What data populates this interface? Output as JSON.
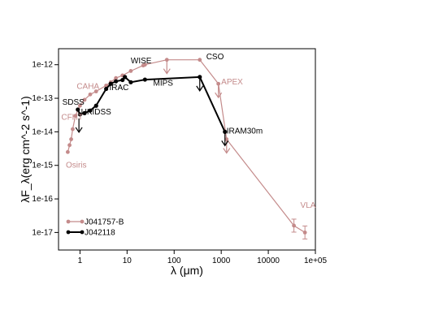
{
  "chart_data": {
    "type": "line",
    "xlabel": "λ (μm)",
    "ylabel": "λF_λ(erg cm^-2 s^-1)",
    "x_scale": "log",
    "y_scale": "log",
    "xlim": [
      0.35,
      100000
    ],
    "ylim": [
      3e-18,
      3e-12
    ],
    "x_ticks": [
      1,
      10,
      100,
      1000,
      10000,
      100000
    ],
    "x_tick_labels": [
      "1",
      "10",
      "100",
      "1000",
      "10000",
      "1e+05"
    ],
    "y_ticks": [
      1e-17,
      1e-16,
      1e-15,
      1e-14,
      1e-13,
      1e-12
    ],
    "y_tick_labels": [
      "1e-17",
      "1e-16",
      "1e-15",
      "1e-14",
      "1e-13",
      "1e-12"
    ],
    "legend_position": "bottom-left",
    "colors": {
      "J041757-B": "#c48b8b",
      "J042118": "#000000"
    },
    "series": [
      {
        "name": "J041757-B",
        "color": "#c48b8b",
        "points": [
          {
            "x": 0.55,
            "y": 2.5e-15
          },
          {
            "x": 0.6,
            "y": 4e-15
          },
          {
            "x": 0.65,
            "y": 6e-15
          },
          {
            "x": 0.7,
            "y": 1.2e-14
          },
          {
            "x": 0.8,
            "y": 3e-14
          },
          {
            "x": 1.0,
            "y": 6e-14
          },
          {
            "x": 1.25,
            "y": 9e-14
          },
          {
            "x": 1.65,
            "y": 1.3e-13
          },
          {
            "x": 2.2,
            "y": 1.6e-13
          },
          {
            "x": 3.6,
            "y": 2.4e-13
          },
          {
            "x": 4.5,
            "y": 3e-13
          },
          {
            "x": 5.8,
            "y": 4e-13
          },
          {
            "x": 8.0,
            "y": 4.8e-13
          },
          {
            "x": 12,
            "y": 6.5e-13
          },
          {
            "x": 22,
            "y": 9.5e-13
          },
          {
            "x": 24,
            "y": 1e-12
          },
          {
            "x": 70,
            "y": 1.4e-12
          },
          {
            "x": 350,
            "y": 1.4e-12
          },
          {
            "x": 870,
            "y": 2.7e-13
          },
          {
            "x": 1300,
            "y": 6e-15
          },
          {
            "x": 35000,
            "y": 1.6e-17
          },
          {
            "x": 60000,
            "y": 1e-17
          }
        ],
        "upper_limits": [
          {
            "x": 70,
            "y": 1.4e-12
          },
          {
            "x": 870,
            "y": 2.7e-13
          },
          {
            "x": 1300,
            "y": 6e-15
          }
        ]
      },
      {
        "name": "J042118",
        "color": "#000000",
        "points": [
          {
            "x": 0.9,
            "y": 4.6e-14
          },
          {
            "x": 1.0,
            "y": 3.3e-14
          },
          {
            "x": 1.25,
            "y": 3.6e-14
          },
          {
            "x": 1.65,
            "y": 4.3e-14
          },
          {
            "x": 2.2,
            "y": 6e-14
          },
          {
            "x": 3.6,
            "y": 1.9e-13
          },
          {
            "x": 4.5,
            "y": 2.7e-13
          },
          {
            "x": 5.8,
            "y": 3.2e-13
          },
          {
            "x": 8.0,
            "y": 3.5e-13
          },
          {
            "x": 9.0,
            "y": 4.3e-13
          },
          {
            "x": 12,
            "y": 3e-13
          },
          {
            "x": 24,
            "y": 3.6e-13
          },
          {
            "x": 350,
            "y": 4.3e-13
          },
          {
            "x": 1200,
            "y": 1e-14
          }
        ],
        "upper_limits": [
          {
            "x": 0.95,
            "y": 2.5e-14
          },
          {
            "x": 350,
            "y": 4.3e-13
          },
          {
            "x": 1200,
            "y": 1e-14
          }
        ]
      }
    ],
    "annotations": [
      {
        "text": "CAHA",
        "x": 0.85,
        "y": 1.9e-13,
        "color": "#c48b8b"
      },
      {
        "text": "SDSS",
        "x": 0.42,
        "y": 6.5e-14,
        "color": "#000000"
      },
      {
        "text": "CFHT",
        "x": 0.4,
        "y": 2.3e-14,
        "color": "#c48b8b"
      },
      {
        "text": "Osiris",
        "x": 0.5,
        "y": 8.5e-16,
        "color": "#c48b8b"
      },
      {
        "text": "UKIDSS",
        "x": 1.05,
        "y": 3.3e-14,
        "color": "#000000"
      },
      {
        "text": "IRAC",
        "x": 4.2,
        "y": 1.75e-13,
        "color": "#000000"
      },
      {
        "text": "WISE",
        "x": 12,
        "y": 1.1e-12,
        "color": "#000000"
      },
      {
        "text": "MIPS",
        "x": 36,
        "y": 2.4e-13,
        "color": "#000000"
      },
      {
        "text": "CSO",
        "x": 480,
        "y": 1.45e-12,
        "color": "#000000"
      },
      {
        "text": "APEX",
        "x": 1000,
        "y": 2.6e-13,
        "color": "#c48b8b"
      },
      {
        "text": "IRAM30m",
        "x": 1300,
        "y": 9e-15,
        "color": "#000000"
      },
      {
        "text": "VLA",
        "x": 48000,
        "y": 5.5e-17,
        "color": "#c48b8b"
      }
    ]
  }
}
